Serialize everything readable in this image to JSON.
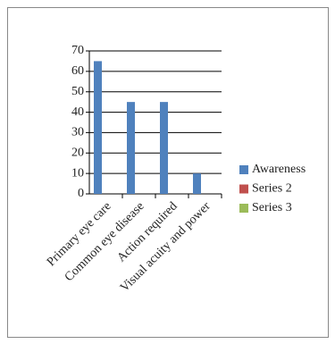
{
  "chart_data": {
    "type": "bar",
    "categories": [
      "Primary eye care",
      "Common eye disease",
      "Action required",
      "Visual acuity and power"
    ],
    "series": [
      {
        "name": "Awareness",
        "color": "#4f81bd",
        "values": [
          65,
          45,
          45,
          10
        ]
      },
      {
        "name": "Series 2",
        "color": "#c0504d",
        "values": [
          null,
          null,
          null,
          null
        ]
      },
      {
        "name": "Series 3",
        "color": "#9bbb59",
        "values": [
          null,
          null,
          null,
          null
        ]
      }
    ],
    "ylim": [
      0,
      70
    ],
    "yticks": [
      0,
      10,
      20,
      30,
      40,
      50,
      60,
      70
    ],
    "grid": true,
    "legend": "right"
  }
}
